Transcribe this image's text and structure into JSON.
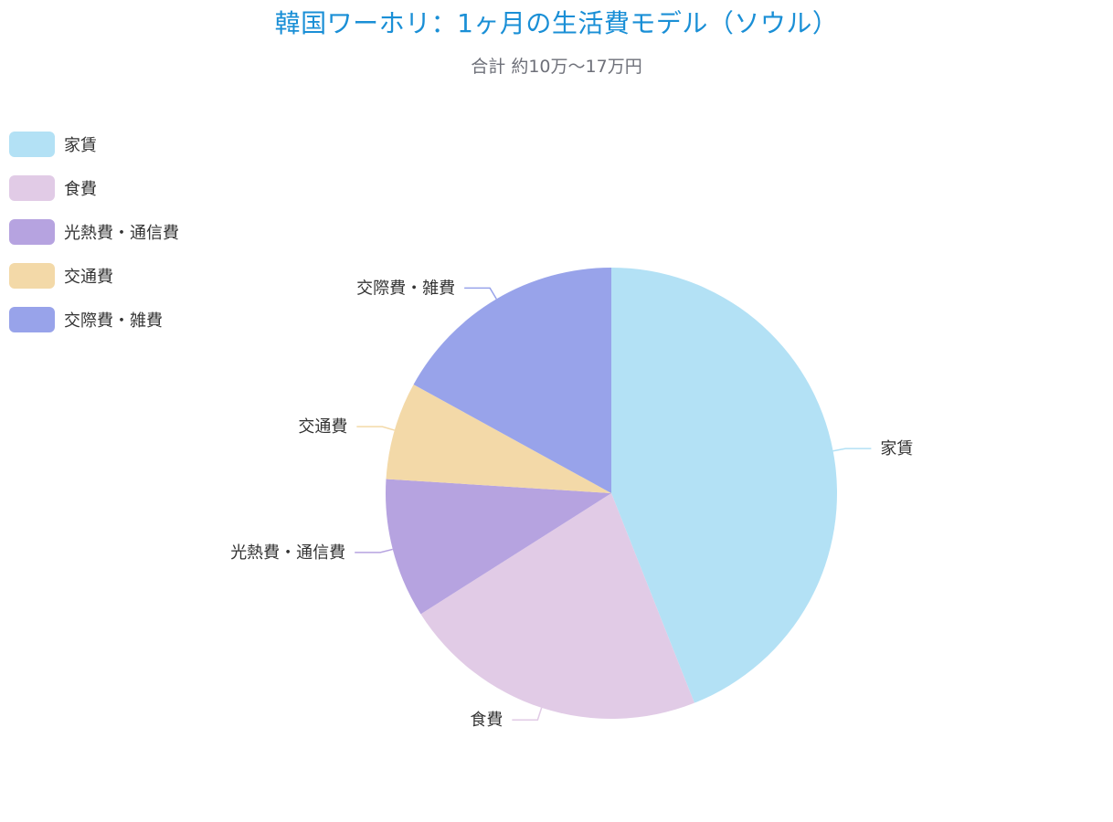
{
  "chart_data": {
    "type": "pie",
    "title": "韓国ワーホリ：1ヶ月の生活費モデル（ソウル）",
    "subtitle": "合計 約10万〜17万円",
    "legend_position": "top-left",
    "slices": [
      {
        "name": "家賃",
        "value": 44,
        "color": "#b3e1f5"
      },
      {
        "name": "食費",
        "value": 22,
        "color": "#e1cbe6"
      },
      {
        "name": "光熱費・通信費",
        "value": 10,
        "color": "#b6a3e0"
      },
      {
        "name": "交通費",
        "value": 7,
        "color": "#f3d9a8"
      },
      {
        "name": "交際費・雑費",
        "value": 17,
        "color": "#98a3ea"
      }
    ]
  }
}
